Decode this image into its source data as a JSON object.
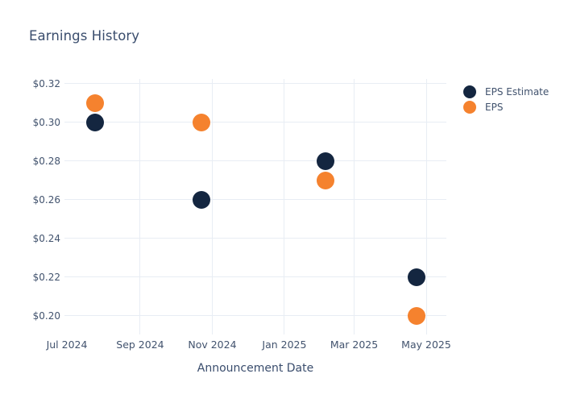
{
  "chart_data": {
    "type": "scatter",
    "title": "Earnings History",
    "xlabel": "Announcement Date",
    "ylabel": "",
    "x_ticks": [
      {
        "label": "Jul 2024",
        "date": "2024-07-01",
        "gridline": false
      },
      {
        "label": "Sep 2024",
        "date": "2024-09-01",
        "gridline": true
      },
      {
        "label": "Nov 2024",
        "date": "2024-11-01",
        "gridline": true
      },
      {
        "label": "Jan 2025",
        "date": "2025-01-01",
        "gridline": true
      },
      {
        "label": "Mar 2025",
        "date": "2025-03-01",
        "gridline": true
      },
      {
        "label": "May 2025",
        "date": "2025-05-01",
        "gridline": true
      }
    ],
    "y_ticks": [
      {
        "label": "$0.32",
        "value": 0.32
      },
      {
        "label": "$0.30",
        "value": 0.3
      },
      {
        "label": "$0.28",
        "value": 0.28
      },
      {
        "label": "$0.26",
        "value": 0.26
      },
      {
        "label": "$0.24",
        "value": 0.24
      },
      {
        "label": "$0.22",
        "value": 0.22
      },
      {
        "label": "$0.20",
        "value": 0.2
      }
    ],
    "ylim": [
      0.19,
      0.3235
    ],
    "grid": true,
    "legend_position": "outside-top-right",
    "series": [
      {
        "name": "EPS Estimate",
        "color": "#142640",
        "points": [
          {
            "date": "2024-07-25",
            "value": 0.3
          },
          {
            "date": "2024-10-23",
            "value": 0.26
          },
          {
            "date": "2025-02-05",
            "value": 0.28
          },
          {
            "date": "2025-04-23",
            "value": 0.22
          }
        ]
      },
      {
        "name": "EPS",
        "color": "#f5822e",
        "points": [
          {
            "date": "2024-07-25",
            "value": 0.31
          },
          {
            "date": "2024-10-23",
            "value": 0.3
          },
          {
            "date": "2025-02-05",
            "value": 0.27
          },
          {
            "date": "2025-04-23",
            "value": 0.2
          }
        ]
      }
    ],
    "theme": {
      "background": "#ffffff",
      "grid_color": "#e8edf4",
      "axis_text_color": "#42536e",
      "title_color": "#3a4d6d"
    }
  }
}
